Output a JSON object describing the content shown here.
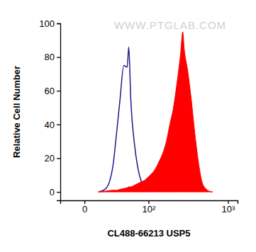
{
  "chart_data": {
    "type": "histogram",
    "x_label": "CL488-66213 USP5",
    "y_label": "Relative Cell Number",
    "annotations": [
      "WWW.PTGLAB.COM"
    ],
    "log": "x",
    "xlim": [
      -20,
      1300
    ],
    "xticks": [
      {
        "value": 0,
        "label": "0"
      },
      {
        "value": 100,
        "label": "10²"
      },
      {
        "value": 1000,
        "label": "10³"
      }
    ],
    "ylim": [
      -5,
      100
    ],
    "yticks": [
      0,
      20,
      40,
      60,
      80,
      100
    ],
    "grid": false,
    "x": [
      5,
      10,
      17,
      25,
      30,
      35,
      41,
      47,
      50,
      54,
      62,
      70,
      79,
      89,
      100,
      112,
      126,
      140,
      157,
      175,
      194,
      216,
      240,
      266,
      283,
      295,
      326,
      361,
      399,
      441,
      488,
      539,
      594,
      656
    ],
    "series": [
      {
        "type": "line",
        "color": "#1c1c8a",
        "values": [
          null,
          0,
          2,
          15,
          35,
          55,
          75,
          74,
          86,
          55,
          28,
          14,
          6,
          2,
          0,
          null,
          null,
          null,
          null,
          null,
          null,
          null,
          null,
          null,
          null,
          null,
          null,
          null,
          null,
          null,
          null,
          null,
          null,
          null
        ]
      },
      {
        "type": "area",
        "color": "#ff0000",
        "values": [
          null,
          0,
          0.5,
          1,
          1,
          1.5,
          2,
          2.5,
          3,
          3,
          4,
          5,
          6,
          7,
          9,
          11,
          14,
          18,
          23,
          30,
          40,
          50,
          65,
          82,
          95,
          85,
          72,
          55,
          35,
          18,
          6,
          2,
          0.5,
          0
        ]
      }
    ]
  }
}
